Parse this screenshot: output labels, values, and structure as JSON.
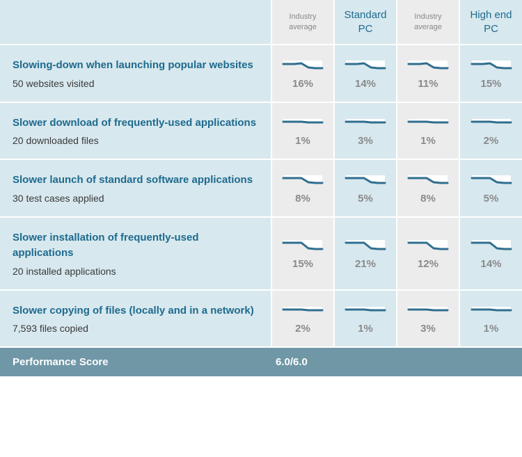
{
  "colors": {
    "header_prod_bg": "#d7e8ee",
    "header_ind_bg": "#ececec",
    "label_bg": "#d7e8ee",
    "ind_bg": "#ececec",
    "prod_bg": "#d7e8ee",
    "footer_bg": "#6f97a6",
    "title_color": "#1e6a8e",
    "sub_color": "#3a3a3a",
    "pct_color": "#8a8a8a",
    "spark_stroke": "#2f6e8f",
    "spark_fill": "#ffffff"
  },
  "columns": [
    {
      "label": "Industry\naverage",
      "type": "ind"
    },
    {
      "label": "Standard\nPC",
      "type": "prod"
    },
    {
      "label": "Industry\naverage",
      "type": "ind"
    },
    {
      "label": "High end\nPC",
      "type": "prod"
    }
  ],
  "rows": [
    {
      "title": "Slowing-down when launching popular websites",
      "sub": "50 websites visited",
      "values": [
        "16%",
        "14%",
        "11%",
        "15%"
      ],
      "spark": [
        10,
        10,
        9,
        15,
        16,
        16
      ]
    },
    {
      "title": "Slower download of frequently-used applications",
      "sub": "20 downloaded files",
      "values": [
        "1%",
        "3%",
        "1%",
        "2%"
      ],
      "spark": [
        11,
        11,
        11,
        12,
        12,
        12
      ]
    },
    {
      "title": "Slower launch of standard software applications",
      "sub": "30 test cases applied",
      "values": [
        "8%",
        "5%",
        "8%",
        "5%"
      ],
      "spark": [
        9,
        9,
        9,
        15,
        16,
        16
      ]
    },
    {
      "title": "Slower installation of frequently-used applications",
      "sub": "20 installed applications",
      "values": [
        "15%",
        "21%",
        "12%",
        "14%"
      ],
      "spark": [
        8,
        8,
        8,
        16,
        17,
        17
      ]
    },
    {
      "title": "Slower copying of files (locally and in a network)",
      "sub": "7,593 files copied",
      "values": [
        "2%",
        "1%",
        "3%",
        "1%"
      ],
      "spark": [
        11,
        11,
        11,
        12,
        12,
        12
      ]
    }
  ],
  "footer": {
    "label": "Performance Score",
    "score": "6.0/6.0"
  },
  "spark_style": {
    "width": 60,
    "height": 22,
    "stroke_width": 3,
    "x_points": [
      2,
      18,
      28,
      38,
      48,
      58
    ]
  }
}
